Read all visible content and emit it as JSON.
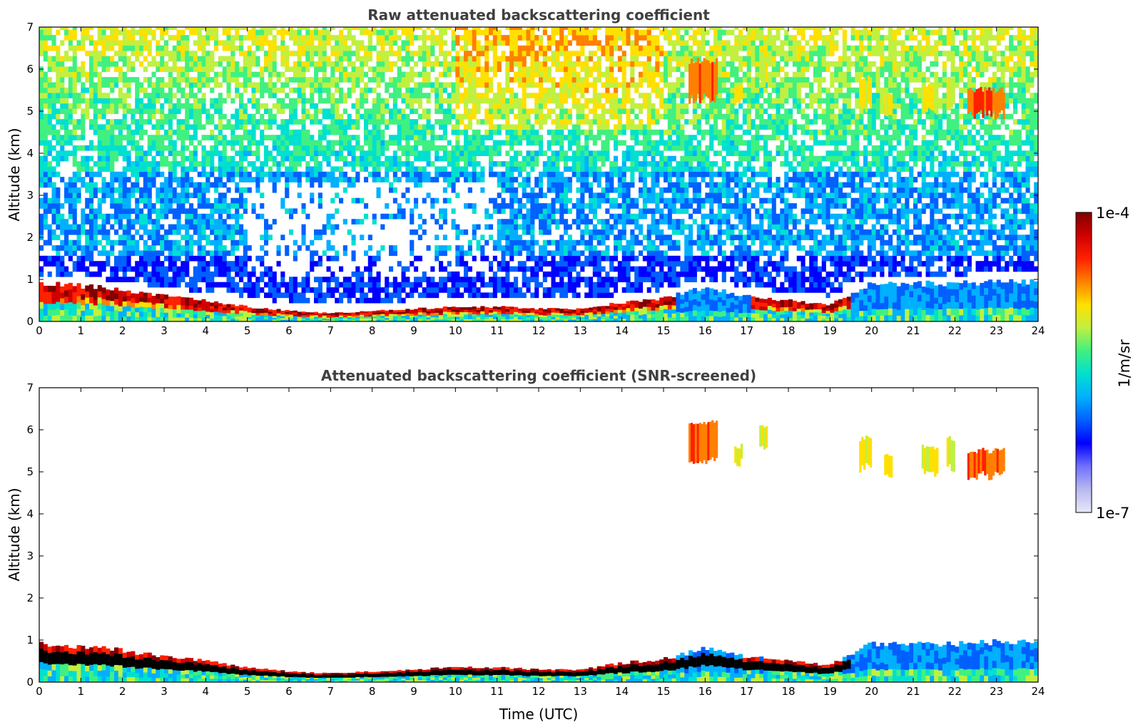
{
  "chart_data": [
    {
      "type": "heatmap",
      "title": "Raw attenuated backscattering coefficient",
      "xlabel": "",
      "ylabel": "Altitude (km)",
      "xlim": [
        0,
        24
      ],
      "ylim": [
        0,
        7
      ],
      "xticks": [
        "0",
        "1",
        "2",
        "3",
        "4",
        "5",
        "6",
        "7",
        "8",
        "9",
        "10",
        "11",
        "12",
        "13",
        "14",
        "15",
        "16",
        "17",
        "18",
        "19",
        "20",
        "21",
        "22",
        "23",
        "24"
      ],
      "yticks": [
        "0",
        "1",
        "2",
        "3",
        "4",
        "5",
        "6",
        "7"
      ],
      "boundary_layer_top_km": [
        [
          0,
          0.9
        ],
        [
          1,
          0.85
        ],
        [
          2,
          0.75
        ],
        [
          3,
          0.6
        ],
        [
          4,
          0.5
        ],
        [
          5,
          0.35
        ],
        [
          6,
          0.25
        ],
        [
          7,
          0.2
        ],
        [
          8,
          0.25
        ],
        [
          9,
          0.3
        ],
        [
          10,
          0.35
        ],
        [
          11,
          0.35
        ],
        [
          12,
          0.3
        ],
        [
          13,
          0.3
        ],
        [
          14,
          0.45
        ],
        [
          15,
          0.55
        ],
        [
          16,
          0.8
        ],
        [
          17,
          0.6
        ],
        [
          18,
          0.5
        ],
        [
          19,
          0.4
        ],
        [
          20,
          0.9
        ],
        [
          21,
          0.9
        ],
        [
          22,
          0.9
        ],
        [
          23,
          0.95
        ],
        [
          24,
          0.95
        ]
      ],
      "cloud_layers": [
        {
          "t_start": 15.6,
          "t_end": 16.3,
          "alt_bottom_km": 5.3,
          "alt_top_km": 6.2,
          "level": "high"
        },
        {
          "t_start": 16.7,
          "t_end": 16.9,
          "alt_bottom_km": 5.2,
          "alt_top_km": 5.6,
          "level": "medium"
        },
        {
          "t_start": 17.3,
          "t_end": 17.5,
          "alt_bottom_km": 5.6,
          "alt_top_km": 6.1,
          "level": "medium"
        },
        {
          "t_start": 19.7,
          "t_end": 20.0,
          "alt_bottom_km": 5.1,
          "alt_top_km": 5.8,
          "level": "medium"
        },
        {
          "t_start": 20.3,
          "t_end": 20.5,
          "alt_bottom_km": 4.9,
          "alt_top_km": 5.4,
          "level": "medium"
        },
        {
          "t_start": 21.2,
          "t_end": 21.6,
          "alt_bottom_km": 5.0,
          "alt_top_km": 5.6,
          "level": "medium"
        },
        {
          "t_start": 21.8,
          "t_end": 22.0,
          "alt_bottom_km": 5.1,
          "alt_top_km": 5.8,
          "level": "medium"
        },
        {
          "t_start": 22.3,
          "t_end": 23.2,
          "alt_bottom_km": 4.9,
          "alt_top_km": 5.5,
          "level": "high"
        }
      ]
    },
    {
      "type": "heatmap",
      "title": "Attenuated backscattering coefficient (SNR-screened)",
      "xlabel": "Time (UTC)",
      "ylabel": "Altitude (km)",
      "xlim": [
        0,
        24
      ],
      "ylim": [
        0,
        7
      ],
      "xticks": [
        "0",
        "1",
        "2",
        "3",
        "4",
        "5",
        "6",
        "7",
        "8",
        "9",
        "10",
        "11",
        "12",
        "13",
        "14",
        "15",
        "16",
        "17",
        "18",
        "19",
        "20",
        "21",
        "22",
        "23",
        "24"
      ],
      "yticks": [
        "0",
        "1",
        "2",
        "3",
        "4",
        "5",
        "6",
        "7"
      ],
      "boundary_layer_top_km": [
        [
          0,
          0.9
        ],
        [
          1,
          0.85
        ],
        [
          2,
          0.75
        ],
        [
          3,
          0.6
        ],
        [
          4,
          0.5
        ],
        [
          5,
          0.35
        ],
        [
          6,
          0.25
        ],
        [
          7,
          0.2
        ],
        [
          8,
          0.25
        ],
        [
          9,
          0.3
        ],
        [
          10,
          0.35
        ],
        [
          11,
          0.35
        ],
        [
          12,
          0.3
        ],
        [
          13,
          0.3
        ],
        [
          14,
          0.45
        ],
        [
          15,
          0.55
        ],
        [
          16,
          0.8
        ],
        [
          17,
          0.6
        ],
        [
          18,
          0.5
        ],
        [
          19,
          0.4
        ],
        [
          20,
          0.9
        ],
        [
          21,
          0.9
        ],
        [
          22,
          0.9
        ],
        [
          23,
          0.95
        ],
        [
          24,
          0.95
        ]
      ],
      "cloud_layers": [
        {
          "t_start": 15.6,
          "t_end": 16.3,
          "alt_bottom_km": 5.3,
          "alt_top_km": 6.2,
          "level": "high"
        },
        {
          "t_start": 16.7,
          "t_end": 16.9,
          "alt_bottom_km": 5.2,
          "alt_top_km": 5.6,
          "level": "medium"
        },
        {
          "t_start": 17.3,
          "t_end": 17.5,
          "alt_bottom_km": 5.6,
          "alt_top_km": 6.1,
          "level": "medium"
        },
        {
          "t_start": 19.7,
          "t_end": 20.0,
          "alt_bottom_km": 5.1,
          "alt_top_km": 5.8,
          "level": "medium"
        },
        {
          "t_start": 20.3,
          "t_end": 20.5,
          "alt_bottom_km": 4.9,
          "alt_top_km": 5.4,
          "level": "medium"
        },
        {
          "t_start": 21.2,
          "t_end": 21.6,
          "alt_bottom_km": 5.0,
          "alt_top_km": 5.6,
          "level": "medium"
        },
        {
          "t_start": 21.8,
          "t_end": 22.0,
          "alt_bottom_km": 5.1,
          "alt_top_km": 5.8,
          "level": "medium"
        },
        {
          "t_start": 22.3,
          "t_end": 23.2,
          "alt_bottom_km": 4.9,
          "alt_top_km": 5.5,
          "level": "high"
        }
      ]
    }
  ],
  "colorbar": {
    "label": "1/m/sr",
    "max_label": "1e-4",
    "min_label": "1e-7",
    "colors": [
      "#e8e8f8",
      "#b8b8f0",
      "#7070ff",
      "#0000ff",
      "#0060ff",
      "#00b0ff",
      "#00e0d0",
      "#40f080",
      "#c0f040",
      "#ffe000",
      "#ff8000",
      "#ff2000",
      "#d00000",
      "#800000"
    ]
  }
}
